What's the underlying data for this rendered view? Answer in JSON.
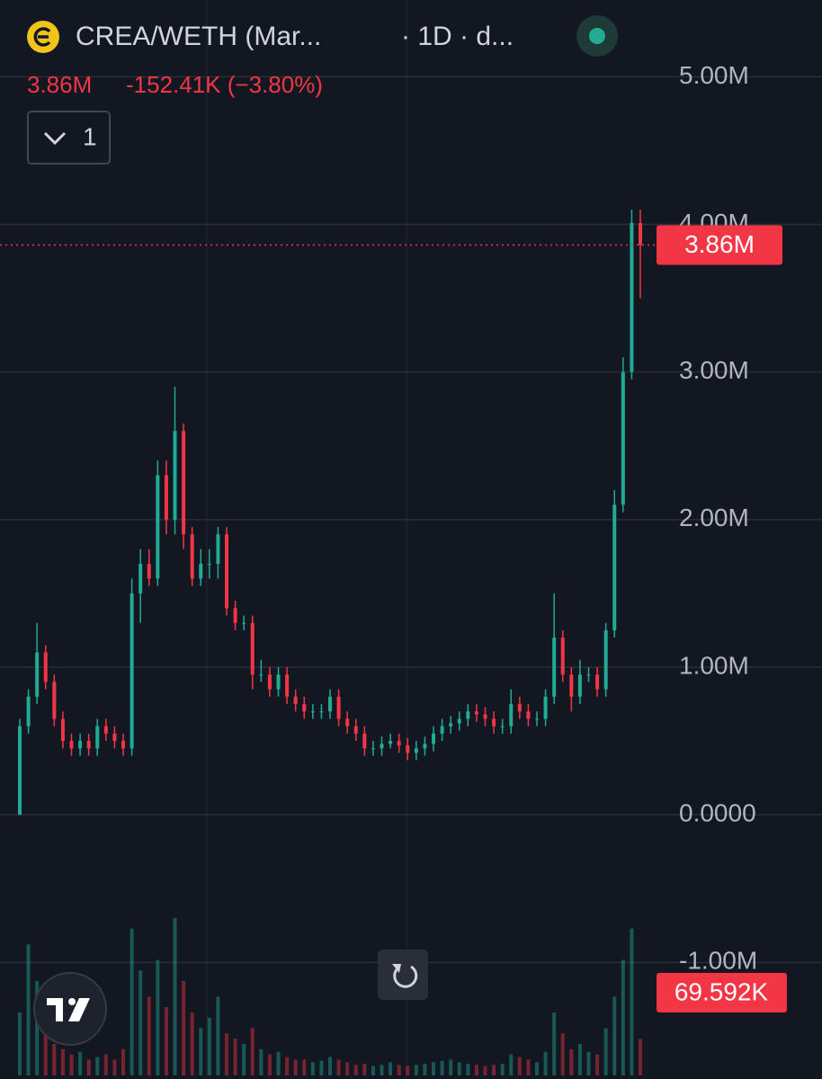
{
  "header": {
    "symbol": "CREA/WETH (Mar...",
    "interval": "· 1D · d...",
    "change": "-152.41K (−3.80%)",
    "indicator_count": "1"
  },
  "chart_data": {
    "type": "candlestick",
    "open": [
      0,
      600000,
      800000,
      1100000,
      900000,
      650000,
      500000,
      450000,
      500000,
      450000,
      600000,
      550000,
      500000,
      450000,
      1500000,
      1700000,
      1600000,
      2300000,
      2000000,
      2600000,
      1900000,
      1600000,
      1700000,
      1700000,
      1900000,
      1400000,
      1300000,
      1300000,
      950000,
      950000,
      850000,
      950000,
      800000,
      750000,
      700000,
      700000,
      700000,
      800000,
      650000,
      600000,
      550000,
      450000,
      450000,
      480000,
      500000,
      470000,
      420000,
      450000,
      480000,
      550000,
      600000,
      620000,
      650000,
      700000,
      680000,
      650000,
      600000,
      600000,
      750000,
      700000,
      650000,
      650000,
      800000,
      1200000,
      950000,
      800000,
      950000,
      950000,
      850000,
      1250000,
      2100000,
      3000000,
      4010000
    ],
    "high": [
      650000,
      850000,
      1300000,
      1150000,
      950000,
      700000,
      550000,
      550000,
      550000,
      650000,
      650000,
      600000,
      550000,
      1600000,
      1800000,
      1800000,
      2400000,
      2400000,
      2900000,
      2650000,
      1950000,
      1800000,
      1800000,
      1950000,
      1950000,
      1450000,
      1350000,
      1350000,
      1050000,
      1000000,
      1000000,
      1000000,
      850000,
      800000,
      750000,
      750000,
      850000,
      850000,
      700000,
      650000,
      600000,
      500000,
      530000,
      550000,
      550000,
      520000,
      500000,
      530000,
      600000,
      650000,
      670000,
      700000,
      750000,
      750000,
      730000,
      700000,
      650000,
      850000,
      800000,
      750000,
      700000,
      850000,
      1500000,
      1250000,
      1000000,
      1050000,
      1000000,
      1000000,
      1300000,
      2200000,
      3100000,
      4100000,
      4100000
    ],
    "low": [
      0,
      550000,
      750000,
      850000,
      600000,
      450000,
      400000,
      400000,
      400000,
      400000,
      500000,
      450000,
      400000,
      400000,
      1300000,
      1550000,
      1550000,
      1900000,
      1900000,
      1800000,
      1550000,
      1550000,
      1600000,
      1600000,
      1350000,
      1250000,
      1250000,
      850000,
      900000,
      800000,
      800000,
      750000,
      700000,
      650000,
      650000,
      650000,
      650000,
      600000,
      550000,
      500000,
      400000,
      400000,
      400000,
      450000,
      420000,
      370000,
      370000,
      400000,
      430000,
      500000,
      550000,
      570000,
      600000,
      630000,
      600000,
      550000,
      550000,
      550000,
      650000,
      600000,
      600000,
      600000,
      750000,
      900000,
      700000,
      750000,
      900000,
      800000,
      800000,
      1200000,
      2050000,
      2950000,
      3500000
    ],
    "close": [
      600000,
      800000,
      1100000,
      900000,
      650000,
      500000,
      450000,
      500000,
      450000,
      600000,
      550000,
      500000,
      450000,
      1500000,
      1700000,
      1600000,
      2300000,
      2000000,
      2600000,
      1900000,
      1600000,
      1700000,
      1700000,
      1900000,
      1400000,
      1300000,
      1300000,
      950000,
      950000,
      850000,
      950000,
      800000,
      750000,
      700000,
      700000,
      700000,
      800000,
      650000,
      600000,
      550000,
      450000,
      450000,
      480000,
      500000,
      470000,
      420000,
      450000,
      480000,
      550000,
      600000,
      620000,
      650000,
      700000,
      680000,
      650000,
      600000,
      600000,
      750000,
      700000,
      650000,
      650000,
      800000,
      1200000,
      950000,
      800000,
      950000,
      950000,
      850000,
      1250000,
      2100000,
      3000000,
      4010000,
      3860000
    ],
    "volume": [
      120000,
      250000,
      180000,
      90000,
      60000,
      50000,
      40000,
      45000,
      30000,
      35000,
      40000,
      30000,
      50000,
      280000,
      200000,
      150000,
      220000,
      130000,
      300000,
      180000,
      120000,
      90000,
      110000,
      150000,
      80000,
      70000,
      60000,
      90000,
      50000,
      40000,
      45000,
      35000,
      30000,
      30000,
      25000,
      28000,
      35000,
      30000,
      25000,
      20000,
      22000,
      18000,
      20000,
      25000,
      20000,
      18000,
      20000,
      22000,
      25000,
      28000,
      30000,
      25000,
      22000,
      20000,
      18000,
      20000,
      22000,
      40000,
      35000,
      30000,
      25000,
      45000,
      120000,
      80000,
      50000,
      60000,
      45000,
      40000,
      90000,
      150000,
      220000,
      280000,
      69592
    ],
    "last_close_label": "3.86M",
    "last_volume_label": "69.592K",
    "up_color": "#22ab94",
    "down_color": "#f23645",
    "ylim": [
      -1790000,
      5520000
    ],
    "yticks": [
      {
        "value": -1000000,
        "label": "-1.00M"
      },
      {
        "value": 0,
        "label": "0.0000"
      },
      {
        "value": 1000000,
        "label": "1.00M"
      },
      {
        "value": 2000000,
        "label": "2.00M"
      },
      {
        "value": 3000000,
        "label": "3.00M"
      },
      {
        "value": 4000000,
        "label": "4.00M"
      },
      {
        "value": 5000000,
        "label": "5.00M"
      }
    ],
    "grid": true
  }
}
